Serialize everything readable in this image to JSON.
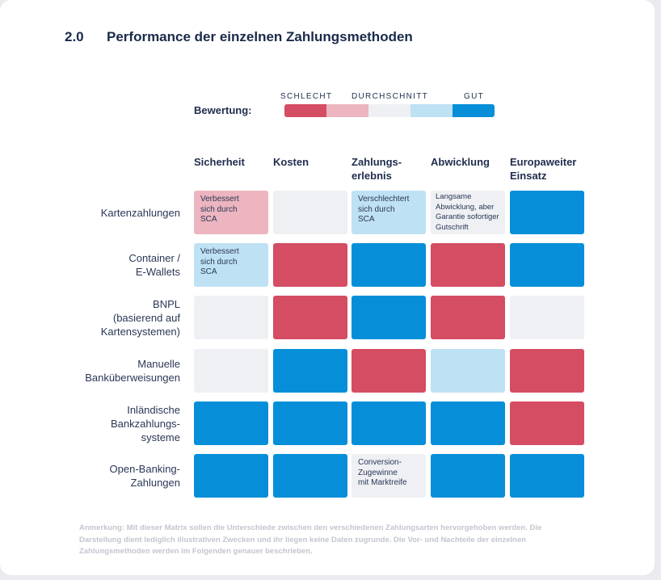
{
  "section": {
    "number": "2.0",
    "title": "Performance der einzelnen Zahlungsmethoden"
  },
  "legend": {
    "label": "Bewertung:",
    "scale_labels": [
      "SCHLECHT",
      "DURCHSCHNITT",
      "GUT"
    ],
    "colors": [
      "#d44d63",
      "#ecb5bf",
      "#eef0f3",
      "#bfe1f4",
      "#068fd8"
    ]
  },
  "columns": [
    "Sicherheit",
    "Kosten",
    "Zahlungs-\nerlebnis",
    "Abwicklung",
    "Europaweiter\nEinsatz"
  ],
  "rows": [
    {
      "label": "Kartenzahlungen",
      "ratings": [
        2,
        3,
        4,
        3,
        5
      ],
      "notes": [
        "Verbessert\nsich durch\nSCA",
        "",
        "Verschlechtert\nsich durch\nSCA",
        "Langsame\nAbwicklung, aber\nGarantie sofortiger\nGutschrift",
        ""
      ]
    },
    {
      "label": "Container /\nE-Wallets",
      "ratings": [
        4,
        1,
        5,
        1,
        5
      ],
      "notes": [
        "Verbessert\nsich durch\nSCA",
        "",
        "",
        "",
        ""
      ]
    },
    {
      "label": "BNPL\n(basierend auf\nKartensystemen)",
      "ratings": [
        3,
        1,
        5,
        1,
        3
      ],
      "notes": [
        "",
        "",
        "",
        "",
        ""
      ]
    },
    {
      "label": "Manuelle\nBanküberweisungen",
      "ratings": [
        3,
        5,
        1,
        4,
        1
      ],
      "notes": [
        "",
        "",
        "",
        "",
        ""
      ]
    },
    {
      "label": "Inländische\nBankzahlungs-\nsysteme",
      "ratings": [
        5,
        5,
        5,
        5,
        1
      ],
      "notes": [
        "",
        "",
        "",
        "",
        ""
      ]
    },
    {
      "label": "Open-Banking-\nZahlungen",
      "ratings": [
        5,
        5,
        3,
        5,
        5
      ],
      "notes": [
        "",
        "",
        "Conversion-\nZugewinne\nmit Marktreife",
        "",
        ""
      ]
    }
  ],
  "note": "Anmerkung: Mit dieser Matrix sollen die Unterschiede zwischen den verschiedenen Zahlungsarten hervorgehoben werden. Die Darstellung dient lediglich illustrativen Zwecken und ihr liegen keine Daten zugrunde. Die Vor- und Nachteile der einzelnen Zahlungsmethoden werden im Folgenden genauer beschrieben."
}
